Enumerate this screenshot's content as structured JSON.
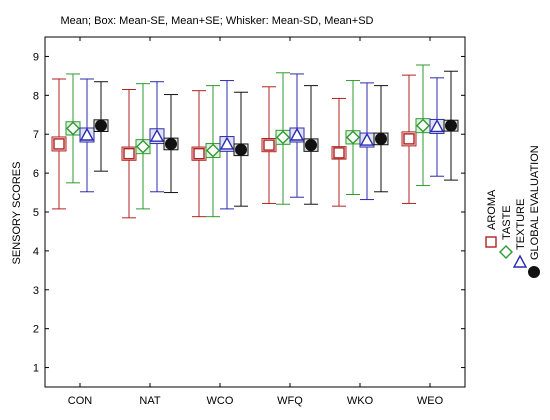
{
  "chart_data": {
    "type": "box",
    "title": "Mean;  Box: Mean-SE, Mean+SE;  Whisker: Mean-SD, Mean+SD",
    "xlabel": "",
    "ylabel": "SENSORY SCORES",
    "ylim": [
      0.5,
      9.5
    ],
    "yticks": [
      1,
      2,
      3,
      4,
      5,
      6,
      7,
      8,
      9
    ],
    "grid": false,
    "legend_position": "right",
    "categories": [
      "CON",
      "NAT",
      "WCO",
      "WFQ",
      "WKO",
      "WEO"
    ],
    "series": [
      {
        "name": "AROMA",
        "marker": "square",
        "color": "#b22222",
        "mean": [
          6.75,
          6.5,
          6.5,
          6.72,
          6.52,
          6.88
        ],
        "se_low": [
          6.57,
          6.33,
          6.33,
          6.55,
          6.36,
          6.7
        ],
        "se_high": [
          6.93,
          6.67,
          6.67,
          6.89,
          6.68,
          7.06
        ],
        "sd_low": [
          5.08,
          4.85,
          4.88,
          5.22,
          5.15,
          5.22
        ],
        "sd_high": [
          8.42,
          8.15,
          8.12,
          8.22,
          7.92,
          8.52
        ]
      },
      {
        "name": "TASTE",
        "marker": "diamond",
        "color": "#2e9b2e",
        "mean": [
          7.15,
          6.68,
          6.58,
          6.92,
          6.92,
          7.22
        ],
        "se_low": [
          6.98,
          6.5,
          6.4,
          6.74,
          6.75,
          7.04
        ],
        "se_high": [
          7.32,
          6.86,
          6.76,
          7.1,
          7.09,
          7.4
        ],
        "sd_low": [
          5.75,
          5.08,
          4.88,
          5.2,
          5.45,
          5.68
        ],
        "sd_high": [
          8.55,
          8.3,
          8.25,
          8.58,
          8.38,
          8.78
        ]
      },
      {
        "name": "TEXTURE",
        "marker": "triangle",
        "color": "#2b2bb0",
        "mean": [
          6.98,
          6.95,
          6.75,
          6.98,
          6.85,
          7.2
        ],
        "se_low": [
          6.8,
          6.76,
          6.56,
          6.8,
          6.67,
          7.02
        ],
        "se_high": [
          7.16,
          7.14,
          6.94,
          7.16,
          7.03,
          7.38
        ],
        "sd_low": [
          5.52,
          5.52,
          5.08,
          5.38,
          5.32,
          5.92
        ],
        "sd_high": [
          8.42,
          8.35,
          8.38,
          8.55,
          8.32,
          8.45
        ]
      },
      {
        "name": "GLOBAL EVALUATION",
        "marker": "circle",
        "color": "#111111",
        "mean": [
          7.22,
          6.75,
          6.6,
          6.72,
          6.88,
          7.22
        ],
        "se_low": [
          7.07,
          6.6,
          6.45,
          6.56,
          6.73,
          7.08
        ],
        "se_high": [
          7.37,
          6.9,
          6.75,
          6.88,
          7.03,
          7.36
        ],
        "sd_low": [
          6.05,
          5.5,
          5.15,
          5.2,
          5.52,
          5.82
        ],
        "sd_high": [
          8.35,
          8.02,
          8.08,
          8.25,
          8.25,
          8.62
        ]
      }
    ]
  }
}
